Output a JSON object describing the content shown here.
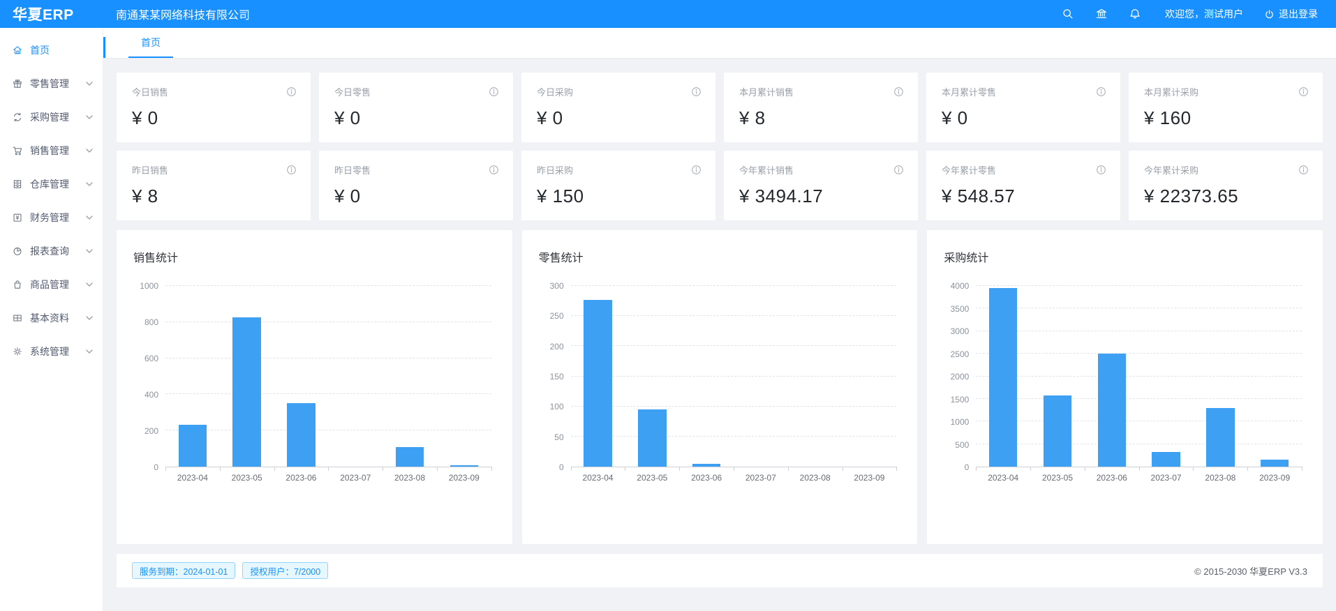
{
  "header": {
    "logo": "华夏ERP",
    "company": "南通某某网络科技有限公司",
    "welcome": "欢迎您，测试用户",
    "logout_label": "退出登录"
  },
  "sidebar": {
    "items": [
      {
        "label": "首页",
        "icon": "home-icon",
        "active": true,
        "expandable": false
      },
      {
        "label": "零售管理",
        "icon": "gift-icon",
        "active": false,
        "expandable": true
      },
      {
        "label": "采购管理",
        "icon": "sync-icon",
        "active": false,
        "expandable": true
      },
      {
        "label": "销售管理",
        "icon": "cart-icon",
        "active": false,
        "expandable": true
      },
      {
        "label": "仓库管理",
        "icon": "cabinet-icon",
        "active": false,
        "expandable": true
      },
      {
        "label": "财务管理",
        "icon": "finance-icon",
        "active": false,
        "expandable": true
      },
      {
        "label": "报表查询",
        "icon": "pie-chart-icon",
        "active": false,
        "expandable": true
      },
      {
        "label": "商品管理",
        "icon": "bag-icon",
        "active": false,
        "expandable": true
      },
      {
        "label": "基本资料",
        "icon": "grid-icon",
        "active": false,
        "expandable": true
      },
      {
        "label": "系统管理",
        "icon": "gear-icon",
        "active": false,
        "expandable": true
      }
    ]
  },
  "tabs": [
    {
      "label": "首页",
      "active": true
    }
  ],
  "stat_cards": [
    {
      "label": "今日销售",
      "amount": "¥ 0"
    },
    {
      "label": "今日零售",
      "amount": "¥ 0"
    },
    {
      "label": "今日采购",
      "amount": "¥ 0"
    },
    {
      "label": "本月累计销售",
      "amount": "¥ 8"
    },
    {
      "label": "本月累计零售",
      "amount": "¥ 0"
    },
    {
      "label": "本月累计采购",
      "amount": "¥ 160"
    },
    {
      "label": "昨日销售",
      "amount": "¥ 8"
    },
    {
      "label": "昨日零售",
      "amount": "¥ 0"
    },
    {
      "label": "昨日采购",
      "amount": "¥ 150"
    },
    {
      "label": "今年累计销售",
      "amount": "¥ 3494.17"
    },
    {
      "label": "今年累计零售",
      "amount": "¥ 548.57"
    },
    {
      "label": "今年累计采购",
      "amount": "¥ 22373.65"
    }
  ],
  "chart_data": [
    {
      "type": "bar",
      "title": "销售统计",
      "categories": [
        "2023-04",
        "2023-05",
        "2023-06",
        "2023-07",
        "2023-08",
        "2023-09"
      ],
      "values": [
        230,
        825,
        350,
        0,
        110,
        8
      ],
      "xlabel": "",
      "ylabel": "",
      "ylim": [
        0,
        1000
      ],
      "ytick_step": 200,
      "grid": true,
      "legend": "none",
      "bar_color": "#3da0f2"
    },
    {
      "type": "bar",
      "title": "零售统计",
      "categories": [
        "2023-04",
        "2023-05",
        "2023-06",
        "2023-07",
        "2023-08",
        "2023-09"
      ],
      "values": [
        277,
        95,
        5,
        0,
        0,
        0
      ],
      "xlabel": "",
      "ylabel": "",
      "ylim": [
        0,
        300
      ],
      "ytick_step": 50,
      "grid": true,
      "legend": "none",
      "bar_color": "#3da0f2"
    },
    {
      "type": "bar",
      "title": "采购统计",
      "categories": [
        "2023-04",
        "2023-05",
        "2023-06",
        "2023-07",
        "2023-08",
        "2023-09"
      ],
      "values": [
        3950,
        1580,
        2500,
        330,
        1300,
        160
      ],
      "xlabel": "",
      "ylabel": "",
      "ylim": [
        0,
        4000
      ],
      "ytick_step": 500,
      "grid": true,
      "legend": "none",
      "bar_color": "#3da0f2"
    }
  ],
  "footer": {
    "badges": [
      "服务到期：2024-01-01",
      "授权用户：7/2000"
    ],
    "copyright": "© 2015-2030 华夏ERP V3.3"
  },
  "colors": {
    "header_bg": "#1890ff",
    "accent": "#1890ff",
    "bar": "#3da0f2",
    "badge_bg": "#e6f7ff",
    "badge_border": "#91d5ff",
    "content_bg": "#f0f2f5"
  }
}
